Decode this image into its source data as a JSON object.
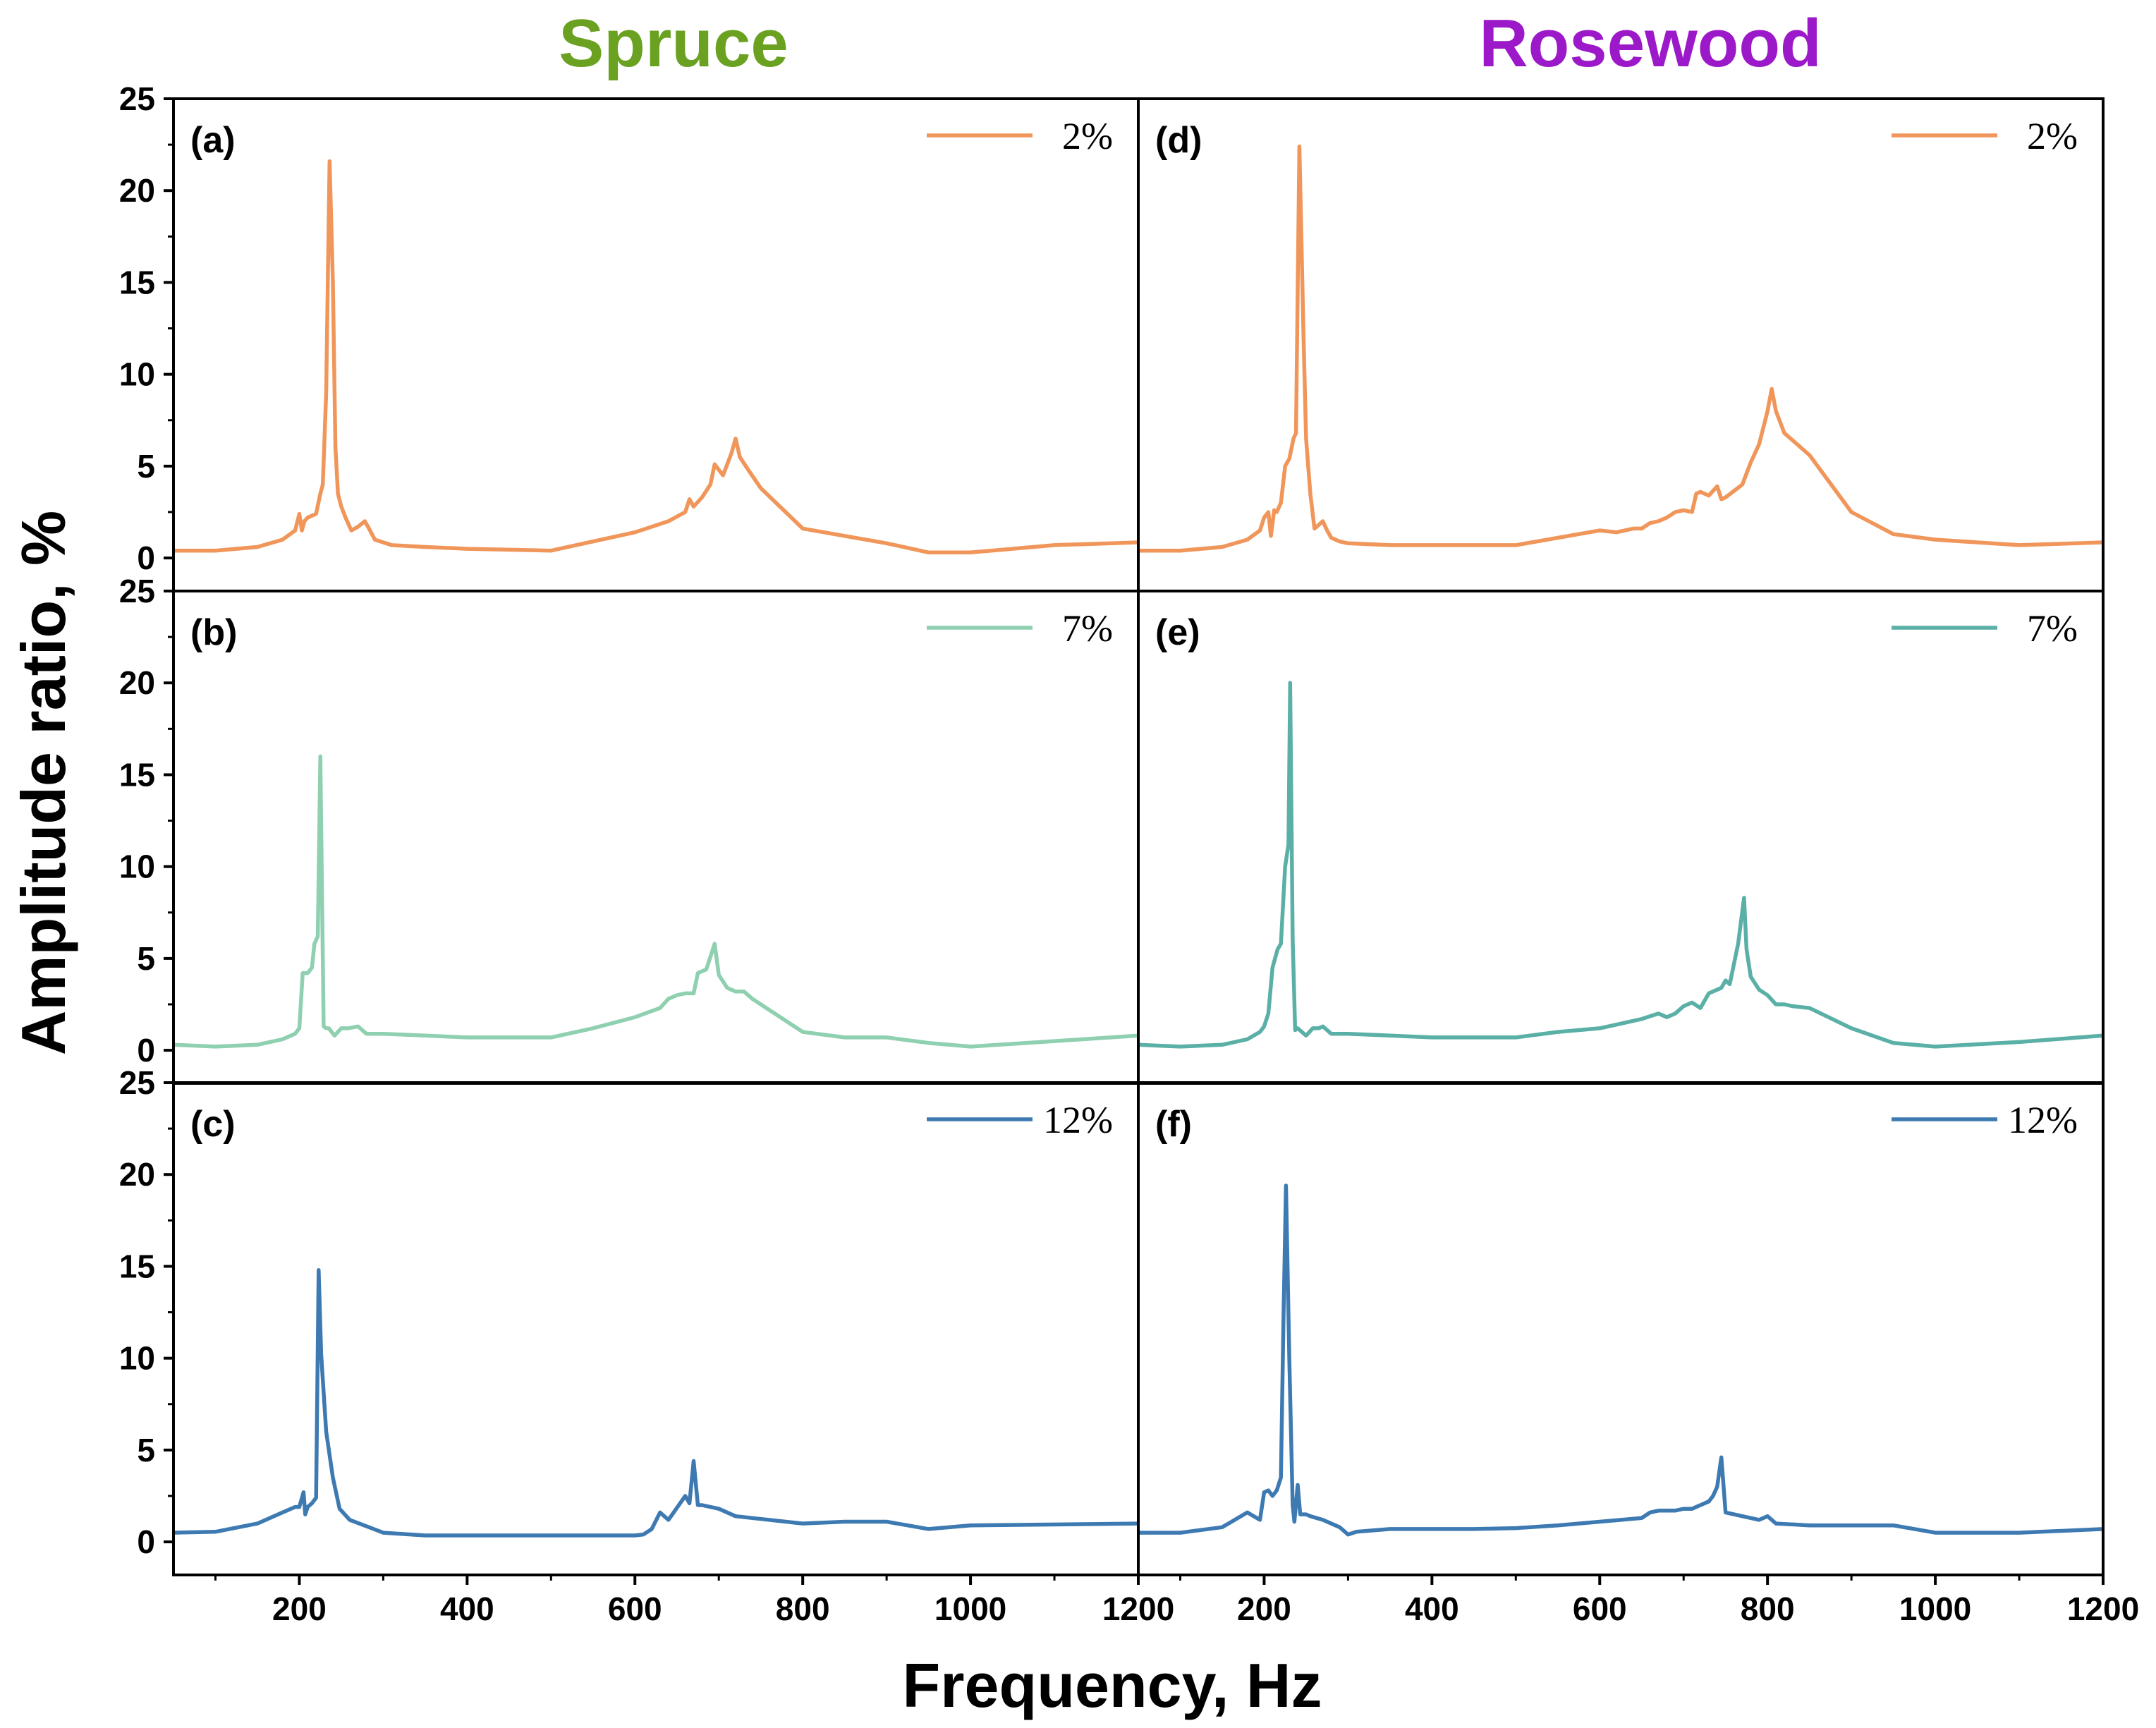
{
  "chart_data": {
    "type": "line",
    "xlabel": "Frequency, Hz",
    "ylabel": "Amplitude ratio, %",
    "xlim": [
      50,
      1200
    ],
    "ylim": [
      -1.8,
      25
    ],
    "x_ticks": [
      "200",
      "400",
      "600",
      "800",
      "1000",
      "1200"
    ],
    "y_ticks": [
      "0",
      "5",
      "10",
      "15",
      "20",
      "25"
    ],
    "columns": [
      {
        "title": "Spruce",
        "color": "#6aa121"
      },
      {
        "title": "Rosewood",
        "color": "#9b19c8"
      }
    ],
    "panels": [
      {
        "label": "(a)",
        "column": 0,
        "row": 0,
        "series": {
          "name": "2%",
          "color": "#f0965a",
          "x": [
            50,
            100,
            150,
            180,
            195,
            200,
            203,
            206,
            210,
            215,
            220,
            225,
            228,
            232,
            236,
            240,
            243,
            246,
            250,
            255,
            262,
            270,
            278,
            283,
            290,
            310,
            350,
            400,
            450,
            500,
            550,
            600,
            640,
            660,
            665,
            670,
            680,
            690,
            695,
            700,
            705,
            715,
            720,
            725,
            735,
            750,
            800,
            900,
            950,
            1000,
            1100,
            1200
          ],
          "y": [
            0.4,
            0.4,
            0.6,
            1.0,
            1.5,
            2.4,
            1.5,
            2.0,
            2.2,
            2.3,
            2.4,
            3.5,
            4.0,
            9.0,
            21.6,
            15.0,
            6.0,
            3.5,
            2.8,
            2.2,
            1.5,
            1.7,
            2.0,
            1.6,
            1.0,
            0.7,
            0.6,
            0.5,
            0.45,
            0.4,
            0.9,
            1.4,
            2.0,
            2.5,
            3.2,
            2.8,
            3.3,
            4.0,
            5.1,
            4.8,
            4.5,
            5.7,
            6.5,
            5.5,
            4.8,
            3.8,
            1.6,
            0.8,
            0.3,
            0.3,
            0.7,
            0.85
          ]
        }
      },
      {
        "label": "(b)",
        "column": 0,
        "row": 1,
        "series": {
          "name": "7%",
          "color": "#8fd0b0",
          "x": [
            50,
            100,
            150,
            180,
            195,
            200,
            204,
            210,
            215,
            218,
            222,
            225,
            229,
            232,
            235,
            242,
            250,
            258,
            270,
            280,
            290,
            300,
            350,
            400,
            450,
            500,
            550,
            600,
            630,
            640,
            650,
            660,
            670,
            675,
            685,
            695,
            700,
            710,
            720,
            730,
            740,
            800,
            850,
            900,
            950,
            1000,
            1100,
            1200
          ],
          "y": [
            0.3,
            0.2,
            0.3,
            0.6,
            0.9,
            1.2,
            4.2,
            4.2,
            4.5,
            5.8,
            6.2,
            16.0,
            1.3,
            1.2,
            1.2,
            0.8,
            1.2,
            1.2,
            1.3,
            0.9,
            0.9,
            0.9,
            0.8,
            0.7,
            0.7,
            0.7,
            1.2,
            1.8,
            2.3,
            2.8,
            3.0,
            3.1,
            3.1,
            4.2,
            4.4,
            5.8,
            4.1,
            3.4,
            3.2,
            3.2,
            2.8,
            1.0,
            0.7,
            0.7,
            0.4,
            0.2,
            0.5,
            0.8
          ]
        }
      },
      {
        "label": "(c)",
        "column": 0,
        "row": 2,
        "series": {
          "name": "12%",
          "color": "#3e7ab2",
          "x": [
            50,
            100,
            150,
            180,
            195,
            200,
            205,
            207,
            210,
            215,
            220,
            223,
            226,
            232,
            240,
            248,
            252,
            260,
            300,
            350,
            400,
            500,
            550,
            600,
            610,
            620,
            630,
            640,
            660,
            665,
            670,
            675,
            680,
            700,
            720,
            740,
            800,
            850,
            900,
            950,
            1000,
            1200
          ],
          "y": [
            0.5,
            0.55,
            1.0,
            1.6,
            1.9,
            1.9,
            2.7,
            1.5,
            1.9,
            2.1,
            2.4,
            14.8,
            10.2,
            6.0,
            3.5,
            1.8,
            1.6,
            1.2,
            0.5,
            0.35,
            0.35,
            0.35,
            0.35,
            0.35,
            0.4,
            0.7,
            1.6,
            1.2,
            2.5,
            2.1,
            4.4,
            2.0,
            2.0,
            1.8,
            1.4,
            1.3,
            1.0,
            1.1,
            1.1,
            0.7,
            0.9,
            1.0
          ]
        }
      },
      {
        "label": "(d)",
        "column": 1,
        "row": 0,
        "series": {
          "name": "2%",
          "color": "#f0965a",
          "x": [
            50,
            100,
            150,
            180,
            195,
            200,
            205,
            208,
            212,
            215,
            220,
            225,
            230,
            235,
            238,
            242,
            247,
            250,
            255,
            260,
            265,
            270,
            275,
            280,
            290,
            300,
            350,
            400,
            450,
            500,
            550,
            600,
            620,
            640,
            650,
            660,
            670,
            680,
            690,
            700,
            710,
            715,
            720,
            730,
            740,
            745,
            750,
            770,
            780,
            790,
            800,
            805,
            810,
            820,
            850,
            900,
            950,
            1000,
            1100,
            1200
          ],
          "y": [
            0.4,
            0.4,
            0.6,
            1.0,
            1.5,
            2.2,
            2.5,
            1.2,
            2.6,
            2.5,
            3.0,
            5.0,
            5.4,
            6.5,
            6.8,
            22.4,
            12.0,
            6.5,
            3.5,
            1.6,
            1.8,
            2.0,
            1.5,
            1.1,
            0.9,
            0.8,
            0.7,
            0.7,
            0.7,
            0.7,
            1.1,
            1.5,
            1.4,
            1.6,
            1.6,
            1.9,
            2.0,
            2.2,
            2.5,
            2.6,
            2.5,
            3.5,
            3.6,
            3.4,
            3.9,
            3.2,
            3.3,
            4.0,
            5.2,
            6.2,
            8.0,
            9.2,
            8.0,
            6.8,
            5.6,
            2.5,
            1.3,
            1.0,
            0.7,
            0.85
          ]
        }
      },
      {
        "label": "(e)",
        "column": 1,
        "row": 1,
        "series": {
          "name": "7%",
          "color": "#5ab0a6",
          "x": [
            50,
            100,
            150,
            180,
            195,
            200,
            205,
            210,
            213,
            216,
            220,
            225,
            229,
            231,
            234,
            237,
            240,
            250,
            258,
            265,
            270,
            280,
            290,
            300,
            350,
            400,
            450,
            500,
            550,
            600,
            630,
            650,
            670,
            680,
            690,
            700,
            710,
            720,
            730,
            740,
            745,
            750,
            755,
            765,
            772,
            775,
            780,
            790,
            800,
            810,
            820,
            830,
            850,
            900,
            950,
            1000,
            1100,
            1200
          ],
          "y": [
            0.3,
            0.2,
            0.3,
            0.6,
            1.0,
            1.3,
            2.0,
            4.5,
            5.0,
            5.5,
            5.8,
            10.0,
            11.2,
            20.0,
            6.0,
            1.1,
            1.2,
            0.8,
            1.2,
            1.2,
            1.3,
            0.9,
            0.9,
            0.9,
            0.8,
            0.7,
            0.7,
            0.7,
            1.0,
            1.2,
            1.5,
            1.7,
            2.0,
            1.8,
            2.0,
            2.4,
            2.6,
            2.3,
            3.1,
            3.3,
            3.4,
            3.8,
            3.6,
            5.8,
            8.3,
            5.5,
            4.0,
            3.3,
            3.0,
            2.5,
            2.5,
            2.4,
            2.3,
            1.2,
            0.4,
            0.2,
            0.45,
            0.8
          ]
        }
      },
      {
        "label": "(f)",
        "column": 1,
        "row": 2,
        "series": {
          "name": "12%",
          "color": "#3e7ab2",
          "x": [
            50,
            100,
            150,
            180,
            195,
            200,
            205,
            210,
            215,
            220,
            223,
            226,
            230,
            234,
            236,
            240,
            243,
            246,
            250,
            255,
            270,
            290,
            300,
            310,
            350,
            400,
            450,
            500,
            550,
            600,
            650,
            660,
            670,
            690,
            700,
            710,
            720,
            730,
            735,
            740,
            745,
            750,
            760,
            770,
            780,
            790,
            800,
            810,
            850,
            900,
            950,
            1000,
            1100,
            1200
          ],
          "y": [
            0.5,
            0.5,
            0.8,
            1.6,
            1.2,
            2.7,
            2.8,
            2.5,
            2.8,
            3.5,
            12.0,
            19.4,
            10.0,
            2.0,
            1.1,
            3.1,
            1.5,
            1.5,
            1.5,
            1.4,
            1.2,
            0.8,
            0.4,
            0.55,
            0.7,
            0.7,
            0.7,
            0.75,
            0.9,
            1.1,
            1.3,
            1.6,
            1.7,
            1.7,
            1.8,
            1.8,
            2.0,
            2.2,
            2.5,
            3.0,
            4.6,
            1.6,
            1.5,
            1.4,
            1.3,
            1.2,
            1.4,
            1.0,
            0.9,
            0.9,
            0.9,
            0.5,
            0.5,
            0.7
          ]
        }
      }
    ]
  }
}
